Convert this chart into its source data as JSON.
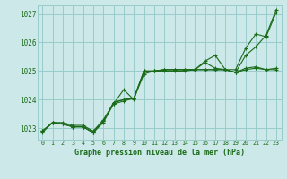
{
  "title": "Graphe pression niveau de la mer (hPa)",
  "xlim": [
    -0.5,
    23.5
  ],
  "ylim": [
    1022.6,
    1027.3
  ],
  "yticks": [
    1023,
    1024,
    1025,
    1026,
    1027
  ],
  "xticks": [
    0,
    1,
    2,
    3,
    4,
    5,
    6,
    7,
    8,
    9,
    10,
    11,
    12,
    13,
    14,
    15,
    16,
    17,
    18,
    19,
    20,
    21,
    22,
    23
  ],
  "background_color": "#cce8e8",
  "grid_color": "#99cccc",
  "line_color": "#1a6b1a",
  "lines": [
    [
      1022.9,
      1023.2,
      1023.2,
      1023.1,
      1023.1,
      1022.9,
      1023.3,
      1023.85,
      1024.35,
      1024.0,
      1025.0,
      1025.0,
      1025.0,
      1025.0,
      1025.0,
      1025.05,
      1025.3,
      1025.1,
      1025.05,
      1025.05,
      1025.8,
      1026.3,
      1026.2,
      1027.05
    ],
    [
      1022.9,
      1023.2,
      1023.15,
      1023.05,
      1023.05,
      1022.85,
      1023.25,
      1023.9,
      1024.0,
      1024.05,
      1025.0,
      1025.0,
      1025.05,
      1025.05,
      1025.05,
      1025.05,
      1025.05,
      1025.05,
      1025.05,
      1024.95,
      1025.05,
      1025.1,
      1025.05,
      1025.05
    ],
    [
      1022.9,
      1023.2,
      1023.15,
      1023.05,
      1023.05,
      1022.85,
      1023.25,
      1023.9,
      1024.0,
      1024.05,
      1025.0,
      1025.0,
      1025.05,
      1025.05,
      1025.05,
      1025.05,
      1025.35,
      1025.55,
      1025.05,
      1024.95,
      1025.1,
      1025.15,
      1025.05,
      1025.1
    ],
    [
      1022.85,
      1023.2,
      1023.15,
      1023.05,
      1023.05,
      1022.85,
      1023.2,
      1023.85,
      1023.95,
      1024.05,
      1024.9,
      1025.0,
      1025.05,
      1025.05,
      1025.05,
      1025.05,
      1025.05,
      1025.05,
      1025.05,
      1024.95,
      1025.55,
      1025.85,
      1026.25,
      1027.15
    ]
  ]
}
